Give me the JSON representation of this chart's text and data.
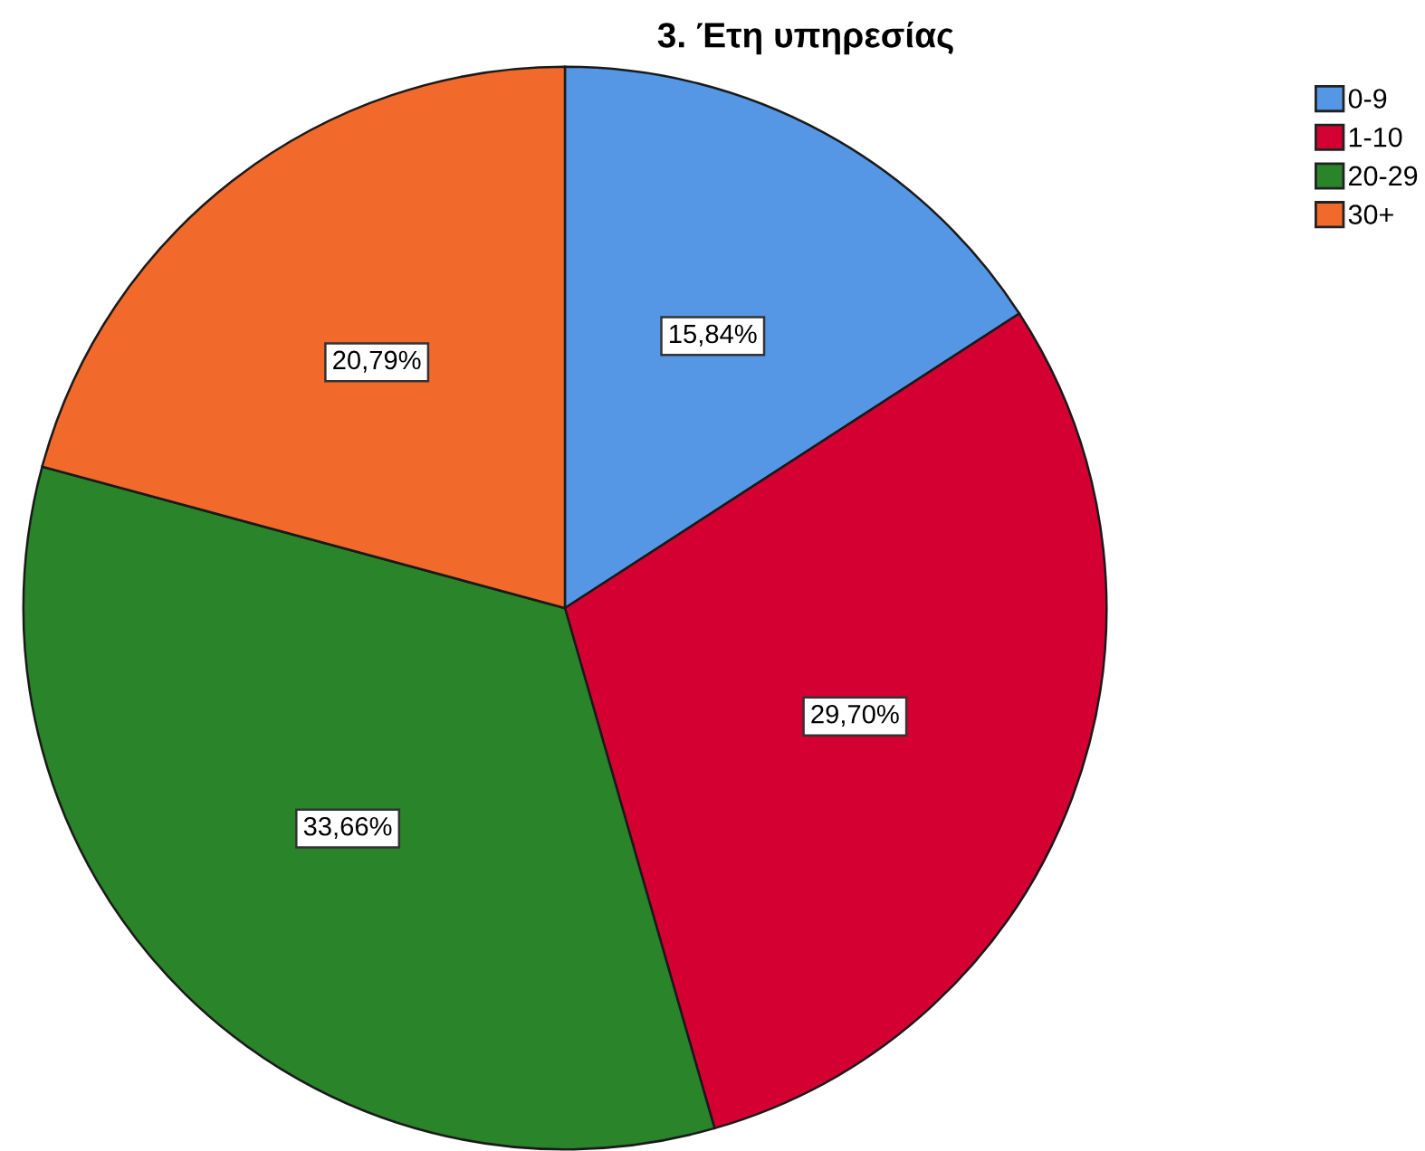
{
  "chart_data": {
    "type": "pie",
    "title": "3. Έτη υπηρεσίας",
    "categories": [
      "0-9",
      "1-10",
      "20-29",
      "30+"
    ],
    "values": [
      15.84,
      29.7,
      33.66,
      20.79
    ],
    "value_labels": [
      "15,84%",
      "29,70%",
      "33,66%",
      "20,79%"
    ],
    "colors": [
      "#5597e4",
      "#d50032",
      "#2a842a",
      "#f2692c"
    ],
    "legend": "top right"
  }
}
